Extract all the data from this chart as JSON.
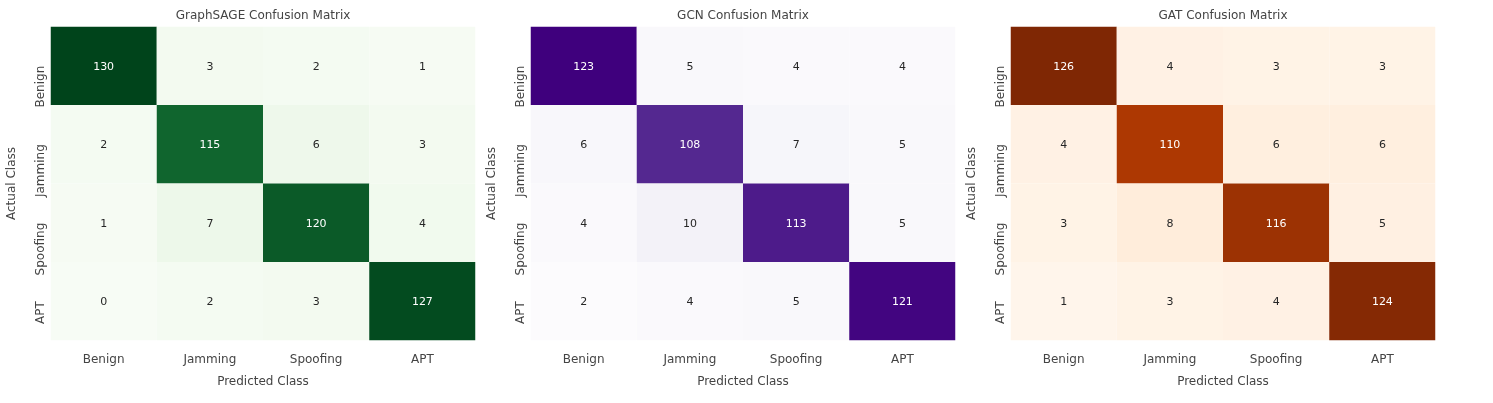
{
  "chart_data": [
    {
      "type": "heatmap",
      "title": "GraphSAGE Confusion Matrix",
      "xlabel": "Predicted Class",
      "ylabel": "Actual Class",
      "categories": [
        "Benign",
        "Jamming",
        "Spoofing",
        "APT"
      ],
      "y_categories": [
        "Benign",
        "Jamming",
        "Spoofing",
        "APT"
      ],
      "cells": [
        [
          130,
          3,
          2,
          1
        ],
        [
          2,
          115,
          6,
          3
        ],
        [
          1,
          7,
          120,
          4
        ],
        [
          0,
          2,
          3,
          127
        ]
      ],
      "colors": [
        "#f7fcf5",
        "#c7e9c0",
        "#74c476",
        "#238b45",
        "#00441b"
      ],
      "data_labels": true
    },
    {
      "type": "heatmap",
      "title": "GCN Confusion Matrix",
      "xlabel": "Predicted Class",
      "ylabel": "Actual Class",
      "categories": [
        "Benign",
        "Jamming",
        "Spoofing",
        "APT"
      ],
      "y_categories": [
        "Benign",
        "Jamming",
        "Spoofing",
        "APT"
      ],
      "cells": [
        [
          123,
          5,
          4,
          4
        ],
        [
          6,
          108,
          7,
          5
        ],
        [
          4,
          10,
          113,
          5
        ],
        [
          2,
          4,
          5,
          121
        ]
      ],
      "colors": [
        "#fcfbfd",
        "#dadaeb",
        "#9e9ac8",
        "#6a51a3",
        "#3f007d"
      ],
      "data_labels": true
    },
    {
      "type": "heatmap",
      "title": "GAT Confusion Matrix",
      "xlabel": "Predicted Class",
      "ylabel": "Actual Class",
      "categories": [
        "Benign",
        "Jamming",
        "Spoofing",
        "APT"
      ],
      "y_categories": [
        "Benign",
        "Jamming",
        "Spoofing",
        "APT"
      ],
      "cells": [
        [
          126,
          4,
          3,
          3
        ],
        [
          4,
          110,
          6,
          6
        ],
        [
          3,
          8,
          116,
          5
        ],
        [
          1,
          3,
          4,
          124
        ]
      ],
      "colors": [
        "#fff5eb",
        "#fdd0a2",
        "#fd8d3c",
        "#d94801",
        "#7f2704"
      ],
      "data_labels": true
    }
  ]
}
